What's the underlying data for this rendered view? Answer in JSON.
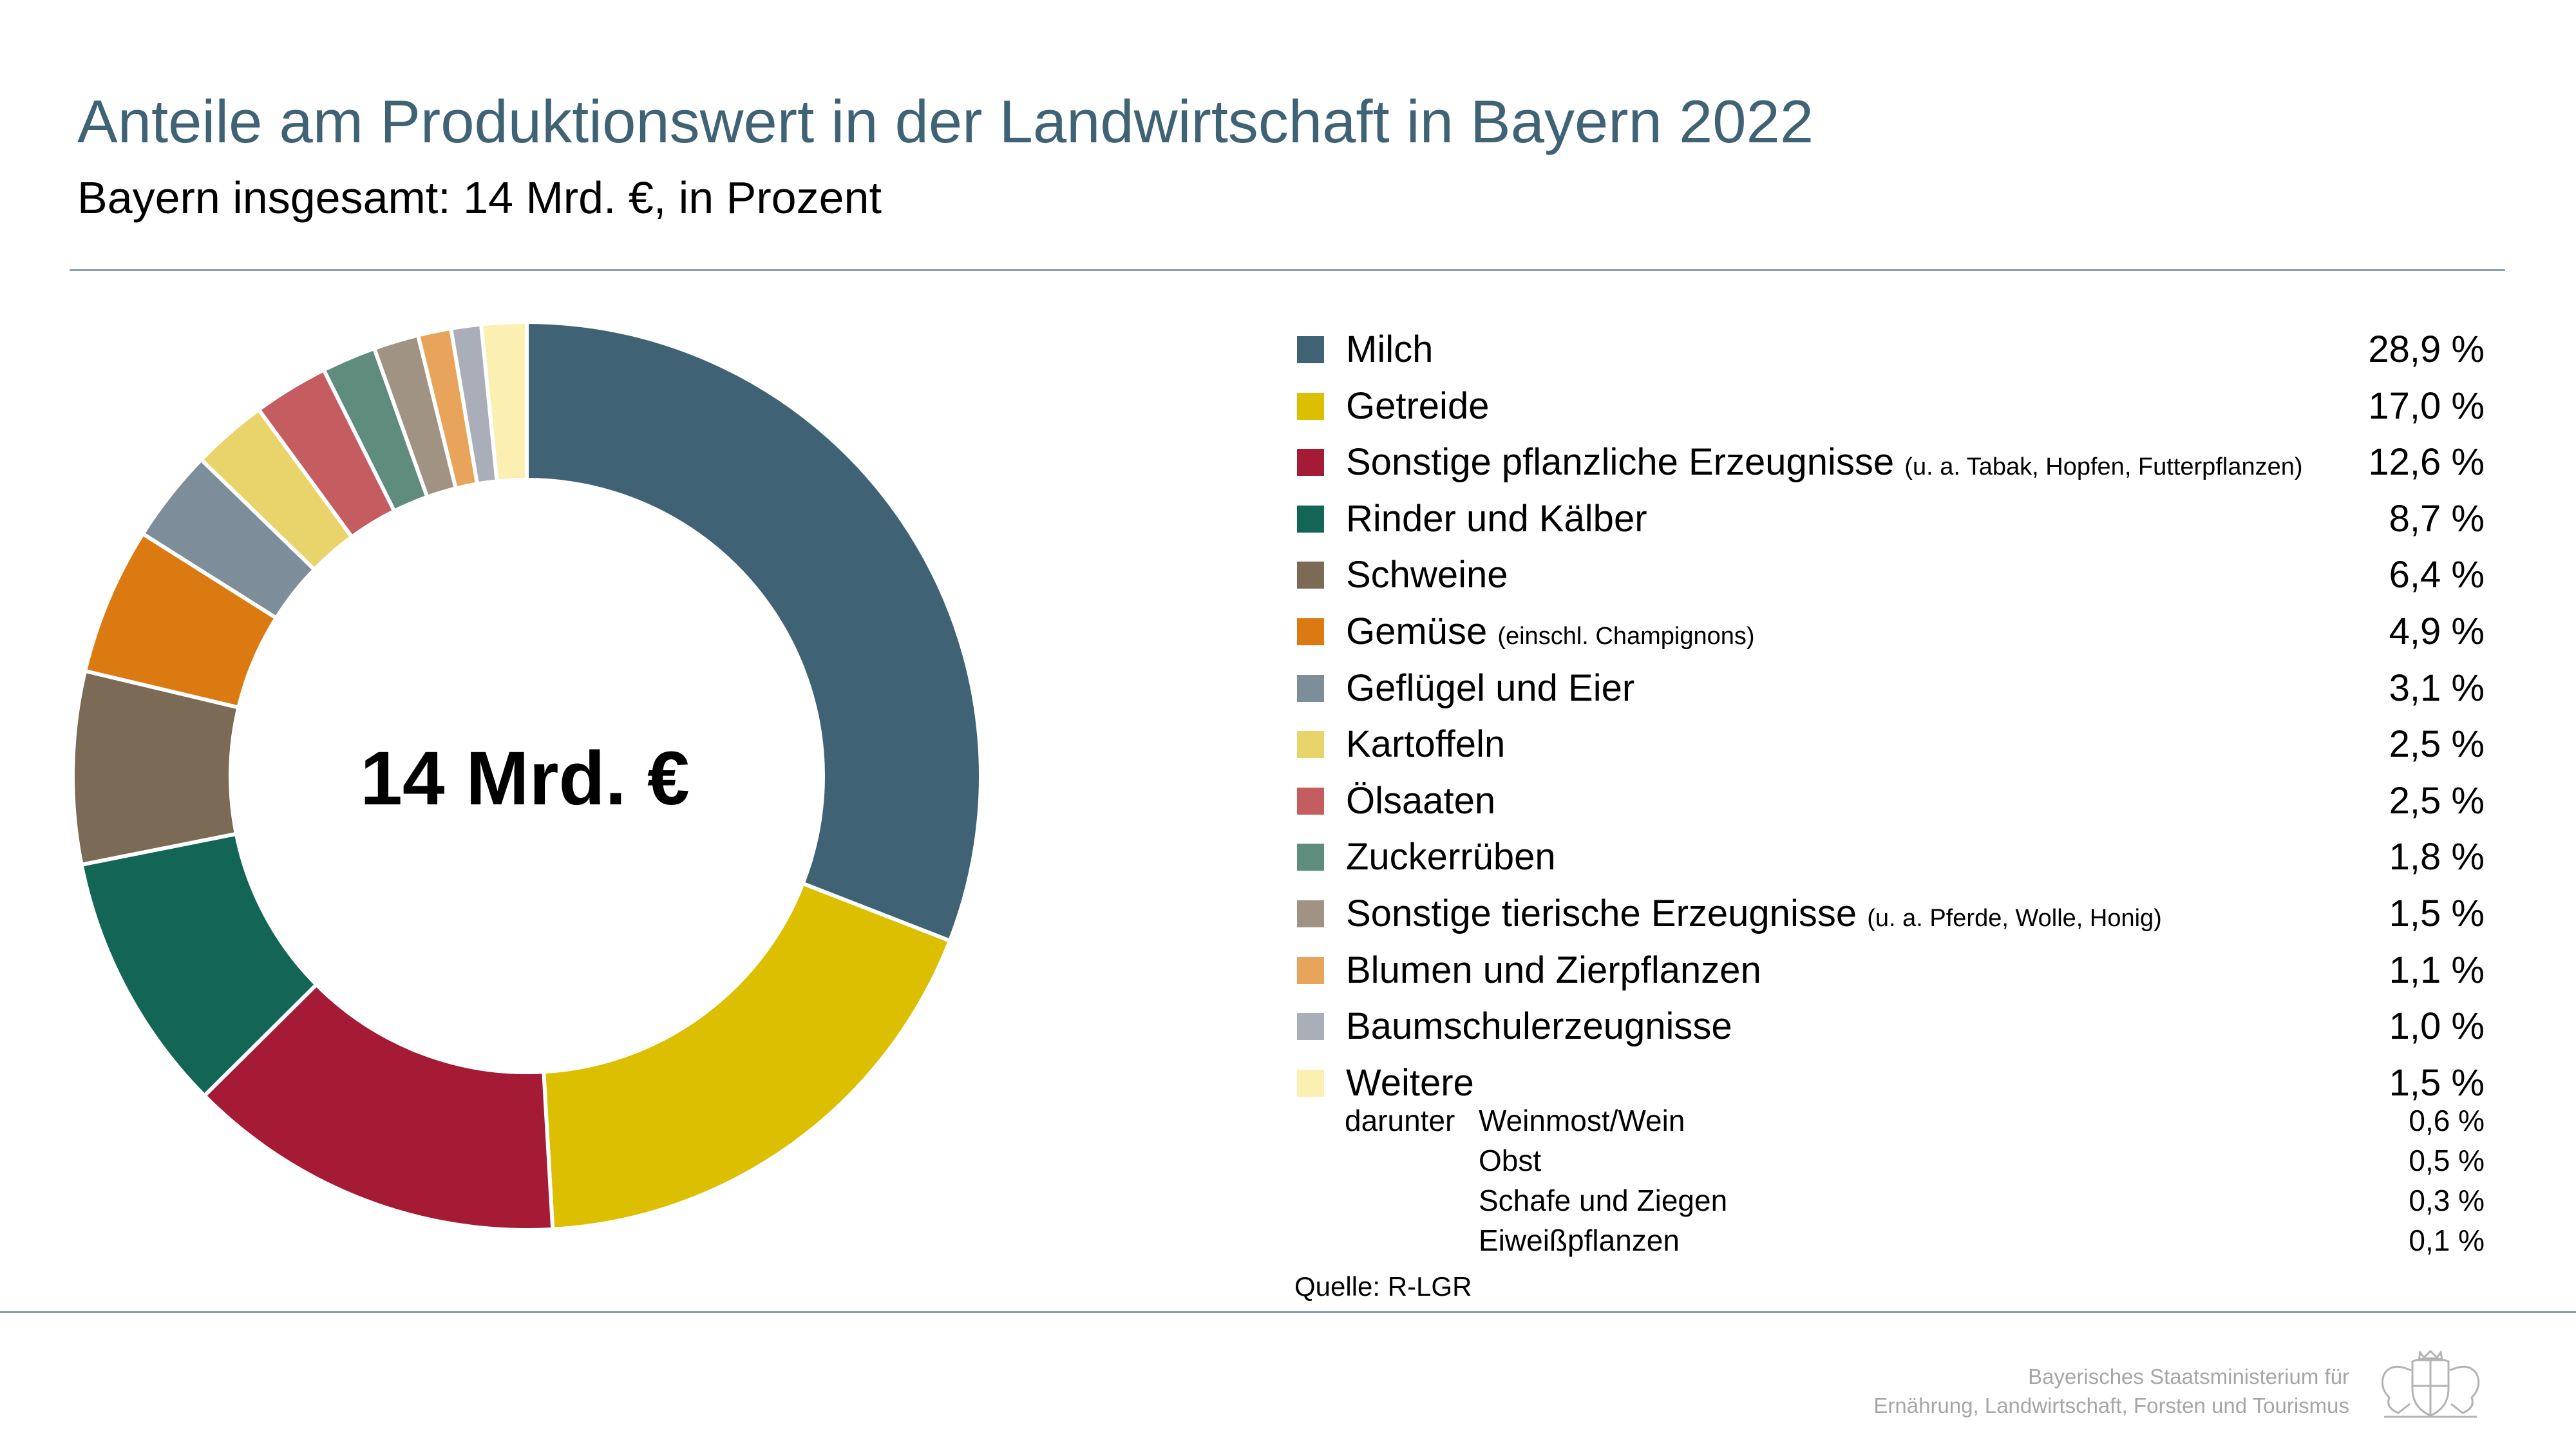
{
  "header": {
    "title": "Anteile am Produktionswert in der Landwirtschaft in Bayern 2022",
    "subtitle": "Bayern insgesamt: 14 Mrd. €, in Prozent"
  },
  "chart_data": {
    "type": "pie",
    "center_label": "14 Mrd. €",
    "legend_placement": "right",
    "slices": [
      {
        "label": "Milch",
        "note": "",
        "value": 28.9,
        "display": "28,9 %",
        "color": "#3f6375"
      },
      {
        "label": "Getreide",
        "note": "",
        "value": 17.0,
        "display": "17,0 %",
        "color": "#dcbf00"
      },
      {
        "label": "Sonstige pflanzliche Erzeugnisse",
        "note": "(u. a. Tabak, Hopfen, Futterpflanzen)",
        "value": 12.6,
        "display": "12,6 %",
        "color": "#a51a35"
      },
      {
        "label": "Rinder und Kälber",
        "note": "",
        "value": 8.7,
        "display": "8,7 %",
        "color": "#136655"
      },
      {
        "label": "Schweine",
        "note": "",
        "value": 6.4,
        "display": "6,4 %",
        "color": "#7b6a55"
      },
      {
        "label": "Gemüse",
        "note": "(einschl. Champignons)",
        "value": 4.9,
        "display": "4,9 %",
        "color": "#dc7a12"
      },
      {
        "label": "Geflügel und Eier",
        "note": "",
        "value": 3.1,
        "display": "3,1 %",
        "color": "#7d8d99"
      },
      {
        "label": "Kartoffeln",
        "note": "",
        "value": 2.5,
        "display": "2,5 %",
        "color": "#e9d36b"
      },
      {
        "label": "Ölsaaten",
        "note": "",
        "value": 2.5,
        "display": "2,5 %",
        "color": "#c55c60"
      },
      {
        "label": "Zuckerrüben",
        "note": "",
        "value": 1.8,
        "display": "1,8 %",
        "color": "#5f8c7c"
      },
      {
        "label": "Sonstige tierische Erzeugnisse",
        "note": "(u. a. Pferde, Wolle, Honig)",
        "value": 1.5,
        "display": "1,5 %",
        "color": "#a09383"
      },
      {
        "label": "Blumen und Zierpflanzen",
        "note": "",
        "value": 1.1,
        "display": "1,1 %",
        "color": "#e8a45b"
      },
      {
        "label": "Baumschulerzeugnisse",
        "note": "",
        "value": 1.0,
        "display": "1,0 %",
        "color": "#a9aeb8"
      },
      {
        "label": "Weitere",
        "note": "",
        "value": 1.5,
        "display": "1,5 %",
        "color": "#fbefb1"
      }
    ],
    "sub_items_prefix": "darunter",
    "sub_items": [
      {
        "label": "Weinmost/Wein",
        "display": "0,6 %"
      },
      {
        "label": "Obst",
        "display": "0,5 %"
      },
      {
        "label": "Schafe und Ziegen",
        "display": "0,3 %"
      },
      {
        "label": "Eiweißpflanzen",
        "display": "0,1 %"
      }
    ]
  },
  "footer": {
    "source": "Quelle: R-LGR",
    "ministry_line1": "Bayerisches Staatsministerium für",
    "ministry_line2": "Ernährung, Landwirtschaft, Forsten und Tourismus"
  }
}
